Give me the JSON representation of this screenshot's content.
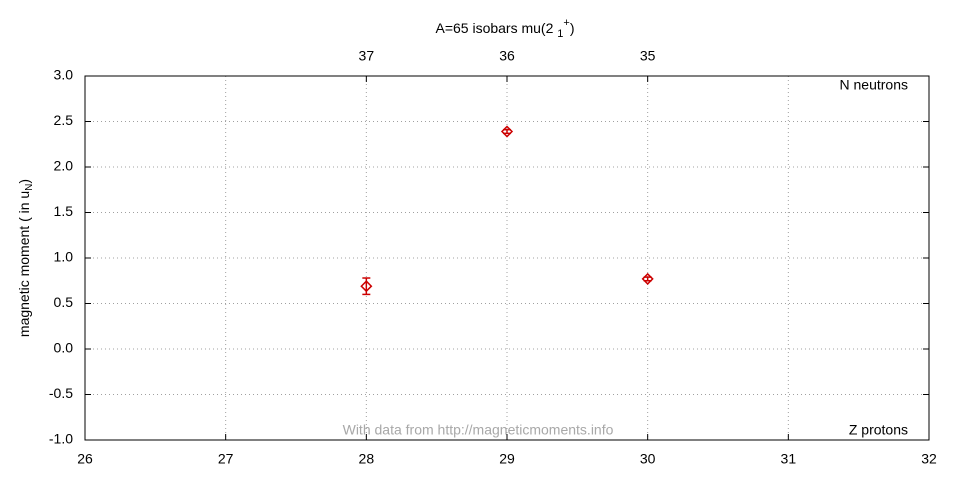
{
  "chart_data": {
    "type": "scatter",
    "title": {
      "main": "A=65 isobars mu(2 ",
      "sub": "1",
      "sup": "+",
      "close": ")"
    },
    "y_label": {
      "main": "magnetic moment ( in u",
      "sub": "N",
      "close": ")"
    },
    "x_axis_label": "Z protons",
    "x2_axis_label": "N neutrons",
    "annotation": "With data from http://magneticmoments.info",
    "x": [
      28,
      29,
      30
    ],
    "y": [
      0.69,
      2.39,
      0.77
    ],
    "errors": [
      0.09,
      0.02,
      0.02
    ],
    "color": "#cc0000",
    "xlim": [
      26,
      32
    ],
    "xticks": [
      26,
      27,
      28,
      29,
      30,
      31,
      32
    ],
    "x2ticks": [
      {
        "value": 28,
        "label": "37"
      },
      {
        "value": 29,
        "label": "36"
      },
      {
        "value": 30,
        "label": "35"
      }
    ],
    "ylim": [
      -1,
      3
    ],
    "yticks": [
      {
        "value": -1,
        "label": "-1.0"
      },
      -0.5,
      {
        "value": 0,
        "label": "0.0"
      },
      0.5,
      {
        "value": 1,
        "label": "1.0"
      },
      1.5,
      {
        "value": 2,
        "label": "2.0"
      },
      2.5,
      {
        "value": 3,
        "label": "3.0"
      }
    ],
    "grid": true
  }
}
